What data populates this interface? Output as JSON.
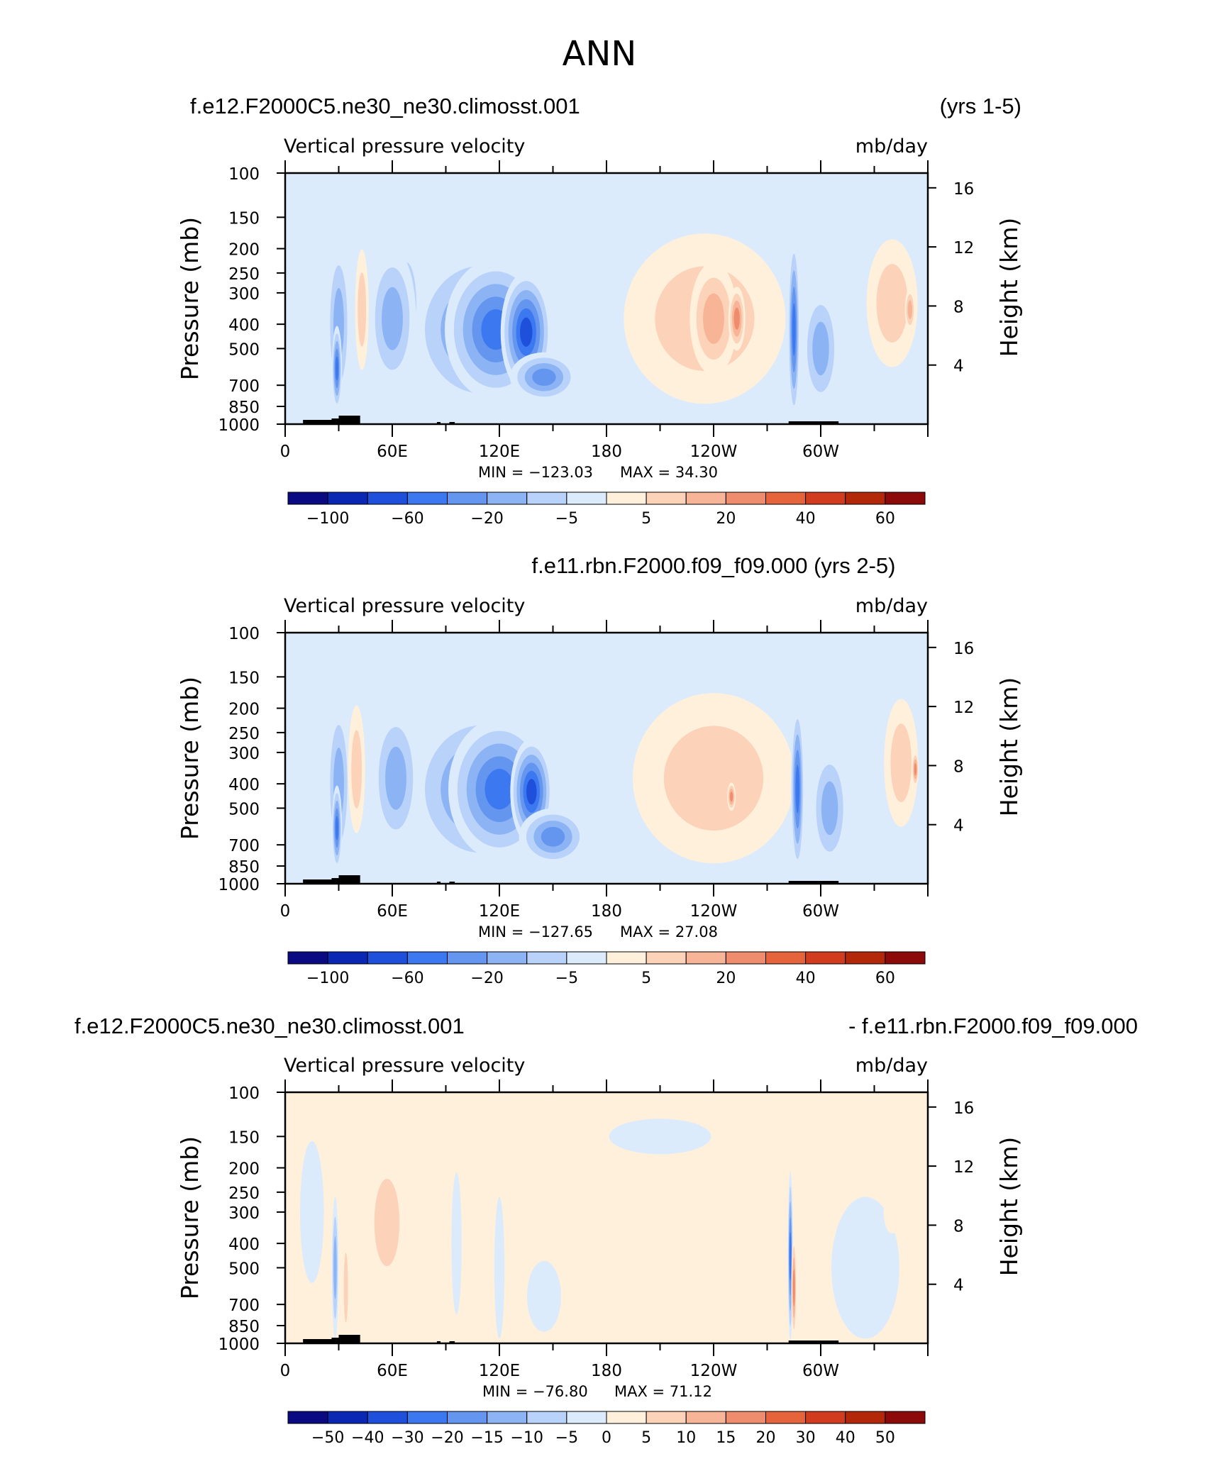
{
  "page_title": "ANN",
  "chart_data": [
    {
      "type": "contour",
      "title_left": "f.e12.F2000C5.ne30_ne30.climosst.001",
      "title_right": "(yrs 1-5)",
      "title_center": "",
      "variable_label": "Vertical pressure velocity",
      "units_label": "mb/day",
      "ylabel": "Pressure (mb)",
      "y2label": "Height (km)",
      "pressure_ticks": [
        "100",
        "150",
        "200",
        "250",
        "300",
        "400",
        "500",
        "700",
        "850",
        "1000"
      ],
      "height_ticks": [
        "16",
        "12",
        "8",
        "4"
      ],
      "lon_ticks": [
        "0",
        "60E",
        "120E",
        "180",
        "120W",
        "60W"
      ],
      "min_text": "MIN = −123.03",
      "max_text": "MAX =   34.30",
      "colorbar_labels": [
        "−100",
        "−60",
        "−20",
        "−5",
        "5",
        "20",
        "40",
        "60"
      ],
      "colors": [
        "#0a0a82",
        "#0a28b4",
        "#1e50dc",
        "#3c78f0",
        "#6496f0",
        "#8cb4f5",
        "#b9d2fa",
        "#dcebfc",
        "#fff0dc",
        "#fcd2b9",
        "#f7b496",
        "#f08c6e",
        "#e6643c",
        "#d23c1e",
        "#b4280a",
        "#8c0a0a"
      ],
      "features": [
        {
          "lon": 30,
          "p": 400,
          "w": 14,
          "h": 230,
          "level": -3
        },
        {
          "lon": 29,
          "p": 600,
          "w": 6,
          "h": 120,
          "level": -5
        },
        {
          "lon": 43,
          "p": 350,
          "w": 8,
          "h": 170,
          "level": 2
        },
        {
          "lon": 110,
          "p": 420,
          "w": 85,
          "h": 230,
          "level": -4
        },
        {
          "lon": 118,
          "p": 420,
          "w": 60,
          "h": 200,
          "level": -5
        },
        {
          "lon": 135,
          "p": 430,
          "w": 30,
          "h": 170,
          "level": -6
        },
        {
          "lon": 145,
          "p": 650,
          "w": 40,
          "h": 70,
          "level": -4
        },
        {
          "lon": 68,
          "p": 330,
          "w": 14,
          "h": 140,
          "level": -5
        },
        {
          "lon": 60,
          "p": 380,
          "w": 28,
          "h": 200,
          "level": -3
        },
        {
          "lon": 235,
          "p": 380,
          "w": 95,
          "h": 240,
          "level": 2
        },
        {
          "lon": 240,
          "p": 380,
          "w": 28,
          "h": 160,
          "level": 3
        },
        {
          "lon": 253,
          "p": 380,
          "w": 10,
          "h": 90,
          "level": 4
        },
        {
          "lon": 285,
          "p": 420,
          "w": 7,
          "h": 260,
          "level": -5
        },
        {
          "lon": 300,
          "p": 500,
          "w": 22,
          "h": 170,
          "level": -3
        },
        {
          "lon": 340,
          "p": 330,
          "w": 30,
          "h": 180,
          "level": 2
        },
        {
          "lon": 350,
          "p": 350,
          "w": 6,
          "h": 60,
          "level": 3
        }
      ]
    },
    {
      "type": "contour",
      "title_left": "",
      "title_right": "",
      "title_center": "f.e11.rbn.F2000.f09_f09.000 (yrs 2-5)",
      "variable_label": "Vertical pressure velocity",
      "units_label": "mb/day",
      "ylabel": "Pressure (mb)",
      "y2label": "Height (km)",
      "pressure_ticks": [
        "100",
        "150",
        "200",
        "250",
        "300",
        "400",
        "500",
        "700",
        "850",
        "1000"
      ],
      "height_ticks": [
        "16",
        "12",
        "8",
        "4"
      ],
      "lon_ticks": [
        "0",
        "60E",
        "120E",
        "180",
        "120W",
        "60W"
      ],
      "min_text": "MIN = −127.65",
      "max_text": "MAX =   27.08",
      "colorbar_labels": [
        "−100",
        "−60",
        "−20",
        "−5",
        "5",
        "20",
        "40",
        "60"
      ],
      "colors": [
        "#0a0a82",
        "#0a28b4",
        "#1e50dc",
        "#3c78f0",
        "#6496f0",
        "#8cb4f5",
        "#b9d2fa",
        "#dcebfc",
        "#fff0dc",
        "#fcd2b9",
        "#f7b496",
        "#f08c6e",
        "#e6643c",
        "#d23c1e",
        "#b4280a",
        "#8c0a0a"
      ],
      "features": [
        {
          "lon": 30,
          "p": 400,
          "w": 14,
          "h": 230,
          "level": -3
        },
        {
          "lon": 29,
          "p": 600,
          "w": 6,
          "h": 120,
          "level": -5
        },
        {
          "lon": 40,
          "p": 350,
          "w": 10,
          "h": 180,
          "level": 2
        },
        {
          "lon": 110,
          "p": 420,
          "w": 85,
          "h": 230,
          "level": -4
        },
        {
          "lon": 120,
          "p": 420,
          "w": 60,
          "h": 200,
          "level": -5
        },
        {
          "lon": 138,
          "p": 430,
          "w": 25,
          "h": 150,
          "level": -6
        },
        {
          "lon": 150,
          "p": 650,
          "w": 40,
          "h": 80,
          "level": -4
        },
        {
          "lon": 68,
          "p": 330,
          "w": 14,
          "h": 140,
          "level": -4
        },
        {
          "lon": 62,
          "p": 380,
          "w": 28,
          "h": 200,
          "level": -3
        },
        {
          "lon": 240,
          "p": 380,
          "w": 95,
          "h": 240,
          "level": 2
        },
        {
          "lon": 250,
          "p": 450,
          "w": 5,
          "h": 40,
          "level": 4
        },
        {
          "lon": 287,
          "p": 420,
          "w": 8,
          "h": 240,
          "level": -5
        },
        {
          "lon": 305,
          "p": 500,
          "w": 22,
          "h": 170,
          "level": -3
        },
        {
          "lon": 345,
          "p": 330,
          "w": 20,
          "h": 180,
          "level": 2
        },
        {
          "lon": 353,
          "p": 350,
          "w": 4,
          "h": 50,
          "level": 4
        }
      ]
    },
    {
      "type": "contour",
      "title_left": "f.e12.F2000C5.ne30_ne30.climosst.001",
      "title_right": "- f.e11.rbn.F2000.f09_f09.000",
      "title_center": "",
      "variable_label": "Vertical pressure velocity",
      "units_label": "mb/day",
      "ylabel": "Pressure (mb)",
      "y2label": "Height (km)",
      "pressure_ticks": [
        "100",
        "150",
        "200",
        "250",
        "300",
        "400",
        "500",
        "700",
        "850",
        "1000"
      ],
      "height_ticks": [
        "16",
        "12",
        "8",
        "4"
      ],
      "lon_ticks": [
        "0",
        "60E",
        "120E",
        "180",
        "120W",
        "60W"
      ],
      "min_text": "MIN = −76.80",
      "max_text": "MAX =   71.12",
      "colorbar_labels": [
        "−50",
        "−40",
        "−30",
        "−20",
        "−15",
        "−10",
        "−5",
        "0",
        "5",
        "10",
        "15",
        "20",
        "30",
        "40",
        "50"
      ],
      "colors": [
        "#0a0a82",
        "#0a28b4",
        "#1e50dc",
        "#3c78f0",
        "#6496f0",
        "#8cb4f5",
        "#b9d2fa",
        "#dcebfc",
        "#fff0dc",
        "#fcd2b9",
        "#f7b496",
        "#f08c6e",
        "#e6643c",
        "#d23c1e",
        "#b4280a",
        "#8c0a0a"
      ],
      "features": [
        {
          "lon": 57,
          "p": 330,
          "w": 24,
          "h": 200,
          "level": 2
        },
        {
          "lon": 28,
          "p": 500,
          "w": 4,
          "h": 200,
          "level": -3
        },
        {
          "lon": 34,
          "p": 600,
          "w": 4,
          "h": 160,
          "level": 2
        },
        {
          "lon": 15,
          "p": 300,
          "w": 14,
          "h": 200,
          "level": -1
        },
        {
          "lon": 96,
          "p": 400,
          "w": 6,
          "h": 200,
          "level": -1
        },
        {
          "lon": 120,
          "p": 500,
          "w": 6,
          "h": 200,
          "level": -1
        },
        {
          "lon": 130,
          "p": 300,
          "w": 8,
          "h": 150,
          "level": 1
        },
        {
          "lon": 148,
          "p": 300,
          "w": 10,
          "h": 120,
          "level": 1
        },
        {
          "lon": 145,
          "p": 650,
          "w": 20,
          "h": 100,
          "level": -1
        },
        {
          "lon": 210,
          "p": 150,
          "w": 60,
          "h": 50,
          "level": -1
        },
        {
          "lon": 220,
          "p": 400,
          "w": 110,
          "h": 240,
          "level": 1
        },
        {
          "lon": 283,
          "p": 450,
          "w": 3,
          "h": 240,
          "level": -5
        },
        {
          "lon": 285,
          "p": 600,
          "w": 3,
          "h": 150,
          "level": 4
        },
        {
          "lon": 325,
          "p": 500,
          "w": 40,
          "h": 200,
          "level": -1
        },
        {
          "lon": 340,
          "p": 300,
          "w": 10,
          "h": 60,
          "level": 1
        }
      ]
    }
  ]
}
